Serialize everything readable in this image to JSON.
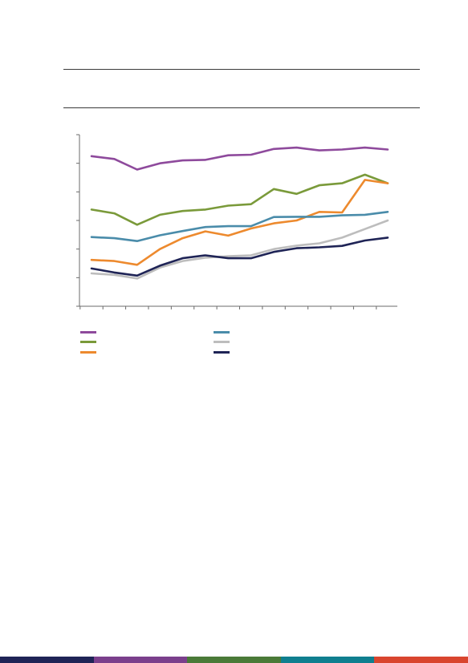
{
  "chart_data": {
    "type": "line",
    "title": "",
    "xlabel": "",
    "ylabel": "",
    "x": [
      1,
      2,
      3,
      4,
      5,
      6,
      7,
      8,
      9,
      10,
      11,
      12,
      13,
      14
    ],
    "ylim": [
      0,
      6
    ],
    "yticks": [
      0,
      1,
      2,
      3,
      4,
      5,
      6
    ],
    "grid": false,
    "legend_position": "bottom",
    "series": [
      {
        "color": "#8E4A9C",
        "values": [
          5.25,
          5.15,
          4.78,
          5.0,
          5.1,
          5.12,
          5.28,
          5.3,
          5.5,
          5.55,
          5.45,
          5.48,
          5.55,
          5.48
        ]
      },
      {
        "color": "#7A9A3A",
        "values": [
          3.38,
          3.25,
          2.85,
          3.2,
          3.33,
          3.38,
          3.52,
          3.57,
          4.1,
          3.93,
          4.23,
          4.3,
          4.6,
          4.3
        ]
      },
      {
        "color": "#ED8A2E",
        "values": [
          1.62,
          1.58,
          1.45,
          2.0,
          2.38,
          2.62,
          2.47,
          2.72,
          2.9,
          3.0,
          3.3,
          3.28,
          4.42,
          4.3
        ]
      },
      {
        "color": "#4A8CAA",
        "values": [
          2.42,
          2.38,
          2.28,
          2.48,
          2.63,
          2.77,
          2.8,
          2.8,
          3.12,
          3.13,
          3.13,
          3.18,
          3.2,
          3.3
        ]
      },
      {
        "color": "#BDBDBD",
        "values": [
          1.15,
          1.1,
          0.97,
          1.35,
          1.58,
          1.7,
          1.75,
          1.78,
          2.0,
          2.12,
          2.2,
          2.4,
          2.7,
          3.0
        ]
      },
      {
        "color": "#1F2456",
        "values": [
          1.32,
          1.18,
          1.07,
          1.42,
          1.68,
          1.78,
          1.68,
          1.68,
          1.9,
          2.03,
          2.06,
          2.11,
          2.3,
          2.4
        ]
      }
    ]
  },
  "legend_columns": [
    [
      "#8E4A9C",
      "#7A9A3A",
      "#ED8A2E"
    ],
    [
      "#4A8CAA",
      "#BDBDBD",
      "#1F2456"
    ]
  ],
  "footer_colors": [
    "#1F2456",
    "#7B3F8C",
    "#4A7A38",
    "#0F7F8F",
    "#D9452E"
  ]
}
